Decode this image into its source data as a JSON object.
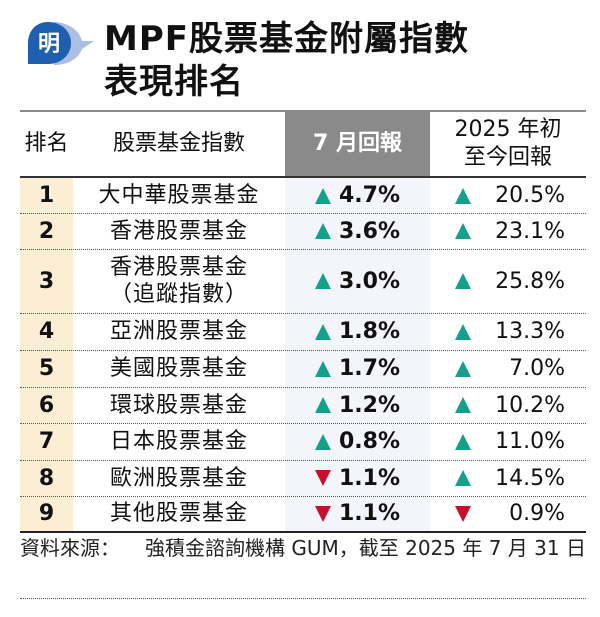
{
  "logo": {
    "glyph": "明",
    "icon": "ming-pao-logo-icon",
    "color": "#1f5fb0"
  },
  "title": {
    "line1": "MPF股票基金附屬指數",
    "line2": "表現排名"
  },
  "table": {
    "headers": {
      "rank": "排名",
      "name": "股票基金指數",
      "july": "7 月回報",
      "ytd_line1": "2025 年初",
      "ytd_line2": "至今回報"
    },
    "colors": {
      "up": "#14a08a",
      "down": "#c8102e",
      "rank_bg": "#fbeed5",
      "july_header_bg": "#8a8a8a"
    },
    "rows": [
      {
        "rank": "1",
        "name": "大中華股票基金",
        "name2": "",
        "july": "4.7%",
        "july_dir": "up",
        "ytd": "20.5%",
        "ytd_dir": "up"
      },
      {
        "rank": "2",
        "name": "香港股票基金",
        "name2": "",
        "july": "3.6%",
        "july_dir": "up",
        "ytd": "23.1%",
        "ytd_dir": "up"
      },
      {
        "rank": "3",
        "name": "香港股票基金",
        "name2": "（追蹤指數）",
        "july": "3.0%",
        "july_dir": "up",
        "ytd": "25.8%",
        "ytd_dir": "up"
      },
      {
        "rank": "4",
        "name": "亞洲股票基金",
        "name2": "",
        "july": "1.8%",
        "july_dir": "up",
        "ytd": "13.3%",
        "ytd_dir": "up"
      },
      {
        "rank": "5",
        "name": "美國股票基金",
        "name2": "",
        "july": "1.7%",
        "july_dir": "up",
        "ytd": "7.0%",
        "ytd_dir": "up"
      },
      {
        "rank": "6",
        "name": "環球股票基金",
        "name2": "",
        "july": "1.2%",
        "july_dir": "up",
        "ytd": "10.2%",
        "ytd_dir": "up"
      },
      {
        "rank": "7",
        "name": "日本股票基金",
        "name2": "",
        "july": "0.8%",
        "july_dir": "up",
        "ytd": "11.0%",
        "ytd_dir": "up"
      },
      {
        "rank": "8",
        "name": "歐洲股票基金",
        "name2": "",
        "july": "1.1%",
        "july_dir": "down",
        "ytd": "14.5%",
        "ytd_dir": "up"
      },
      {
        "rank": "9",
        "name": "其他股票基金",
        "name2": "",
        "july": "1.1%",
        "july_dir": "down",
        "ytd": "0.9%",
        "ytd_dir": "down"
      }
    ]
  },
  "footer": {
    "label": "資料來源：",
    "text": "強積金諮詢機構 GUM，截至 2025 年 7 月 31 日"
  }
}
